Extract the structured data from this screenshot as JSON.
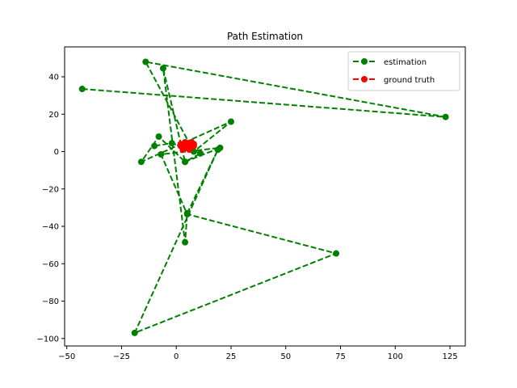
{
  "chart_data": {
    "type": "line",
    "title": "Path Estimation",
    "xlabel": "",
    "ylabel": "",
    "xlim": [
      -51,
      132
    ],
    "ylim": [
      -104,
      56
    ],
    "xticks": [
      -50,
      -25,
      0,
      25,
      50,
      75,
      100,
      125
    ],
    "yticks": [
      -100,
      -80,
      -60,
      -40,
      -20,
      0,
      20,
      40
    ],
    "xtick_labels": [
      "−50",
      "−25",
      "0",
      "25",
      "50",
      "75",
      "100",
      "125"
    ],
    "ytick_labels": [
      "−100",
      "−80",
      "−60",
      "−40",
      "−20",
      "0",
      "20",
      "40"
    ],
    "grid": false,
    "legend_position": "upper right",
    "series": [
      {
        "name": "estimation",
        "color": "#008000",
        "linestyle": "dashed",
        "marker": "circle",
        "x": [
          -43,
          123,
          -14,
          8,
          25,
          -16,
          -8,
          4,
          -6,
          4,
          5,
          19,
          -19,
          73,
          5,
          -7,
          20,
          4,
          11,
          -2,
          -10
        ],
        "y": [
          33.5,
          18.5,
          48,
          0,
          16,
          -5.5,
          8,
          -5.5,
          44.5,
          -48.5,
          -33,
          1,
          -97,
          -54.5,
          -33.5,
          -1.5,
          2,
          -5.5,
          -1,
          4.5,
          3
        ]
      },
      {
        "name": "ground truth",
        "color": "#ff0000",
        "linestyle": "dashed",
        "marker": "circle",
        "x": [
          2,
          4,
          6,
          8,
          3,
          5,
          7,
          2,
          4,
          6,
          8,
          5
        ],
        "y": [
          3,
          5,
          4,
          3,
          1,
          2,
          5,
          4,
          2,
          1,
          4,
          3
        ]
      }
    ]
  }
}
